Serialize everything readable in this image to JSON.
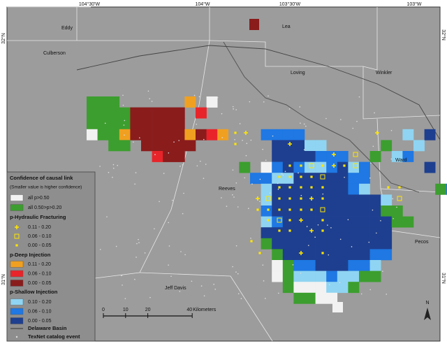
{
  "graticule": {
    "top": [
      "104°30'W",
      "104°W",
      "103°30'W",
      "103°W"
    ],
    "left": [
      "32°N",
      "31°N"
    ],
    "right": [
      "32°N",
      "31°N"
    ]
  },
  "counties": [
    "Eddy",
    "Lea",
    "Culberson",
    "Loving",
    "Winkler",
    "Ward",
    "Reeves",
    "Pecos",
    "Jeff Davis"
  ],
  "legend": {
    "title": "Confidence of causal link",
    "subtitle": "(Smaller value is higher confidence)",
    "all": [
      "all p>0.50",
      "all 0.50>p>0.20"
    ],
    "hf": {
      "title": "p-Hydraulic Fracturing",
      "items": [
        "0.11 - 0.20",
        "0.06 - 0.10",
        "0.00 - 0.05"
      ]
    },
    "deep": {
      "title": "p-Deep Injection",
      "items": [
        "0.11 - 0.20",
        "0.06 - 0.10",
        "0.00 - 0.05"
      ]
    },
    "shallow": {
      "title": "p-Shallow Injection",
      "items": [
        "0.10 - 0.20",
        "0.06 - 0.10",
        "0.00 - 0.05"
      ]
    },
    "basin": "Delaware Basin",
    "event": "TexNet catalog event"
  },
  "scale": {
    "ticks": [
      0,
      10,
      20,
      40
    ],
    "unit": "Kilometers"
  },
  "north": "N"
}
